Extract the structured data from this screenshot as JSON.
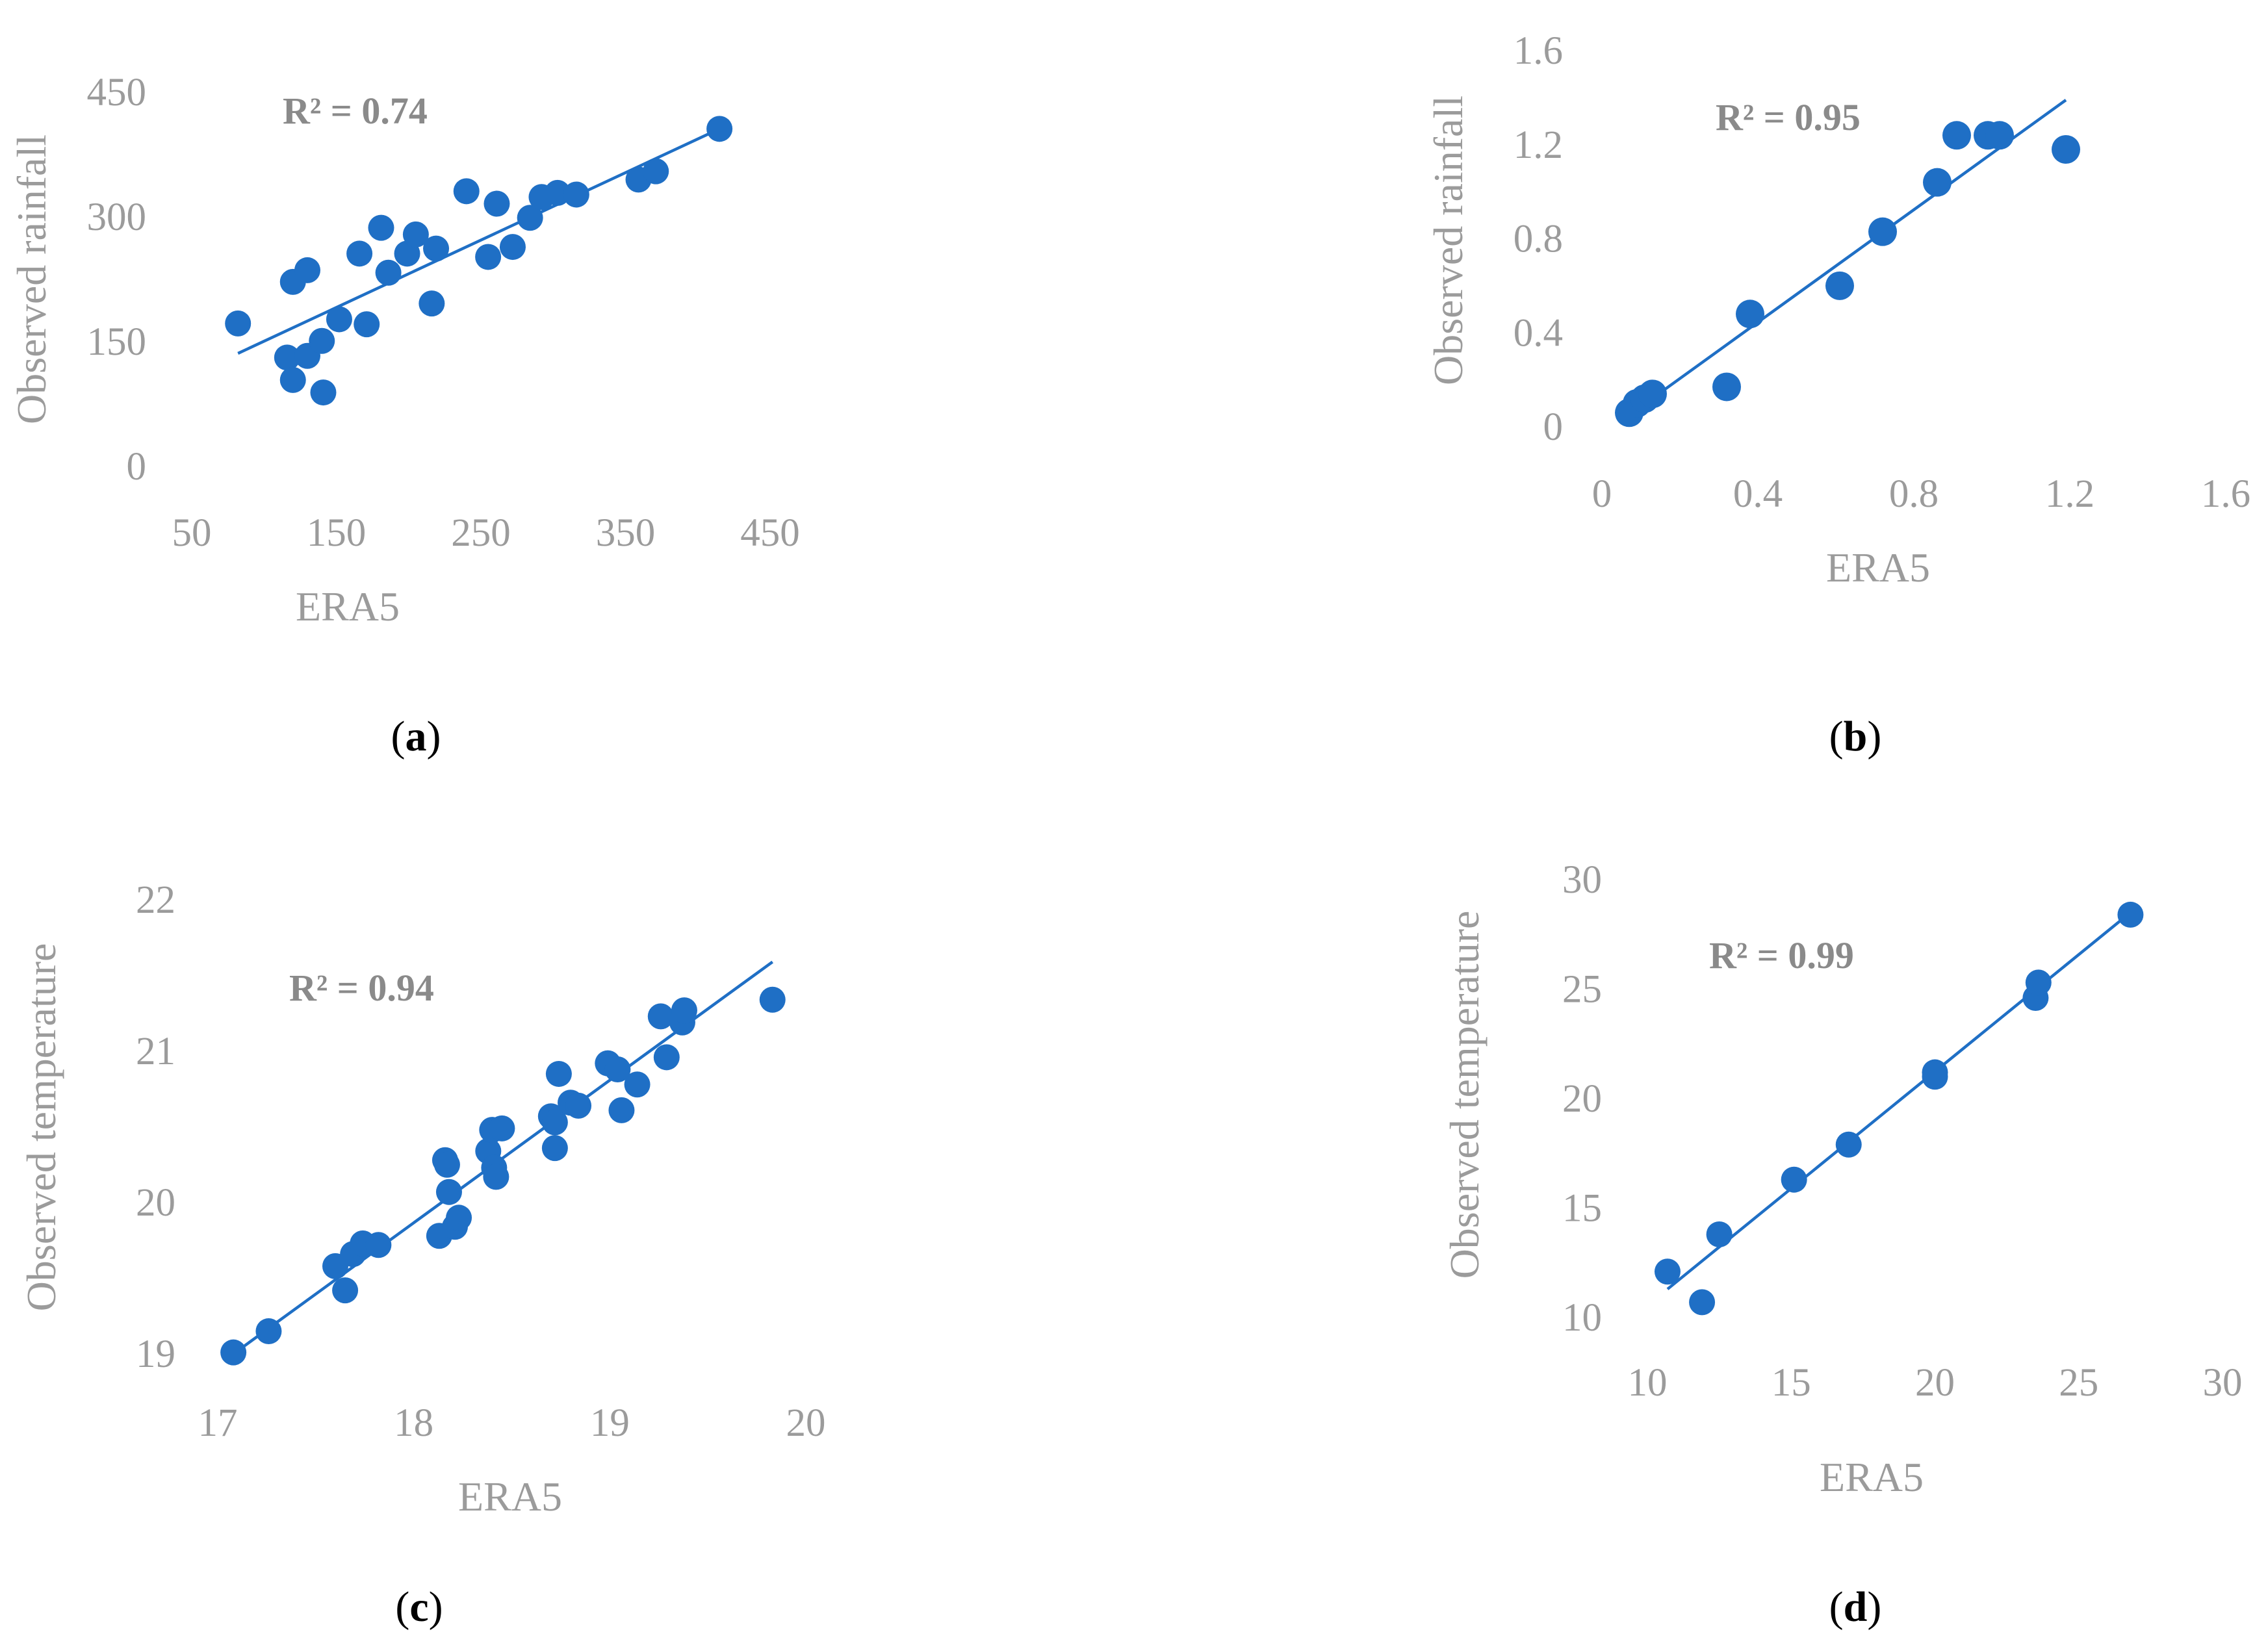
{
  "colors": {
    "marker": "#1f6fc5",
    "trendline": "#1f6fc5",
    "text": "#9b9b9b",
    "r2": "#8a8a8a"
  },
  "chart_data": [
    {
      "id": "a",
      "type": "scatter",
      "panel_label": "a",
      "xlabel": "ERA5",
      "ylabel": "Observed rainfall",
      "annotation": "R² = 0.74",
      "xlim": [
        50,
        450
      ],
      "ylim": [
        0,
        450
      ],
      "xticks": [
        "50",
        "150",
        "250",
        "350",
        "450"
      ],
      "yticks": [
        "0",
        "150",
        "300",
        "450"
      ],
      "trendline": {
        "x": [
          82,
          415
        ],
        "y": [
          136,
          406
        ]
      },
      "x": [
        82,
        116,
        120,
        120,
        130,
        130,
        140,
        141,
        152,
        166,
        171,
        181,
        186,
        199,
        205,
        216,
        219,
        240,
        255,
        261,
        272,
        284,
        292,
        303,
        316,
        359,
        371,
        415
      ],
      "y": [
        172,
        131,
        104,
        222,
        133,
        236,
        151,
        89,
        177,
        256,
        171,
        287,
        233,
        256,
        279,
        196,
        262,
        331,
        252,
        316,
        264,
        299,
        324,
        329,
        327,
        345,
        355,
        406
      ]
    },
    {
      "id": "b",
      "type": "scatter",
      "panel_label": "b",
      "xlabel": "ERA5",
      "ylabel": "Observed rainfall",
      "annotation": "R² = 0.95",
      "xlim": [
        0,
        1.6
      ],
      "ylim": [
        0,
        1.6
      ],
      "xticks": [
        "0",
        "0.4",
        "0.8",
        "1.2",
        "1.6"
      ],
      "yticks": [
        "0",
        "0.4",
        "0.8",
        "1.2",
        "1.6"
      ],
      "trendline": {
        "x": [
          0.07,
          1.19
        ],
        "y": [
          0.05,
          1.39
        ]
      },
      "x": [
        0.07,
        0.09,
        0.11,
        0.13,
        0.32,
        0.38,
        0.61,
        0.72,
        0.86,
        0.91,
        0.99,
        1.02,
        1.19
      ],
      "y": [
        0.06,
        0.1,
        0.12,
        0.14,
        0.17,
        0.48,
        0.6,
        0.83,
        1.04,
        1.24,
        1.24,
        1.24,
        1.18
      ]
    },
    {
      "id": "c",
      "type": "scatter",
      "panel_label": "c",
      "xlabel": "ERA5",
      "ylabel": "Observed temperature",
      "annotation": "R² = 0.94",
      "xlim": [
        17,
        20
      ],
      "ylim": [
        19,
        22
      ],
      "xticks": [
        "17",
        "18",
        "19",
        "20"
      ],
      "yticks": [
        "19",
        "20",
        "21",
        "22"
      ],
      "trendline": {
        "x": [
          17.08,
          19.83
        ],
        "y": [
          19.0,
          21.59
        ]
      },
      "x": [
        17.08,
        17.26,
        17.6,
        17.65,
        17.69,
        17.74,
        17.82,
        18.13,
        18.16,
        18.17,
        18.18,
        18.21,
        18.23,
        18.38,
        18.4,
        18.41,
        18.42,
        18.45,
        18.7,
        18.72,
        18.72,
        18.74,
        18.8,
        18.84,
        18.99,
        19.04,
        19.06,
        19.14,
        19.26,
        19.29,
        19.37,
        19.38,
        19.83
      ],
      "y": [
        19.01,
        19.15,
        19.58,
        19.42,
        19.66,
        19.73,
        19.72,
        19.78,
        20.28,
        20.25,
        20.07,
        19.84,
        19.9,
        20.34,
        20.48,
        20.23,
        20.17,
        20.49,
        20.57,
        20.53,
        20.36,
        20.85,
        20.66,
        20.64,
        20.92,
        20.88,
        20.61,
        20.78,
        21.23,
        20.96,
        21.19,
        21.27,
        21.34
      ]
    },
    {
      "id": "d",
      "type": "scatter",
      "panel_label": "d",
      "xlabel": "ERA5",
      "ylabel": "Observed temperature",
      "annotation": "R² = 0.99",
      "xlim": [
        10,
        30
      ],
      "ylim": [
        10,
        30
      ],
      "xticks": [
        "10",
        "15",
        "20",
        "25",
        "30"
      ],
      "yticks": [
        "10",
        "15",
        "20",
        "25",
        "30"
      ],
      "trendline": {
        "x": [
          10.7,
          26.8
        ],
        "y": [
          11.3,
          28.5
        ]
      },
      "x": [
        10.7,
        11.9,
        12.5,
        15.1,
        17.0,
        20.0,
        20.0,
        23.5,
        23.6,
        26.8
      ],
      "y": [
        12.1,
        10.7,
        13.8,
        16.3,
        17.9,
        21.0,
        21.2,
        24.6,
        25.3,
        28.4
      ]
    }
  ]
}
